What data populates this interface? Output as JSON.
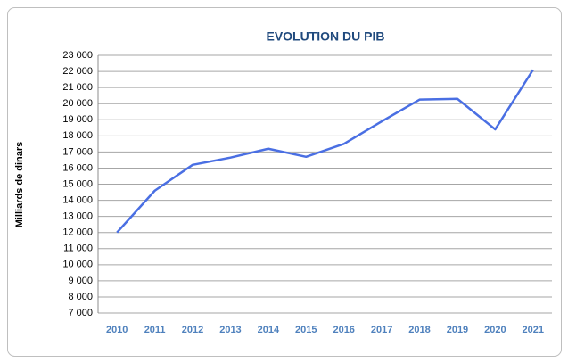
{
  "chart_data": {
    "type": "line",
    "title": "EVOLUTION DU PIB",
    "y_label": "Milliards de dinars",
    "categories": [
      "2010",
      "2011",
      "2012",
      "2013",
      "2014",
      "2015",
      "2016",
      "2017",
      "2018",
      "2019",
      "2020",
      "2021"
    ],
    "series": [
      {
        "name": "PIB",
        "color": "#4a6fe3",
        "values": [
          12000,
          14600,
          16200,
          16650,
          17200,
          16700,
          17500,
          18900,
          20250,
          20300,
          18400,
          22100
        ]
      }
    ],
    "ylim": [
      7000,
      23000
    ],
    "yticks": [
      {
        "value": 7000,
        "label": "7 000"
      },
      {
        "value": 8000,
        "label": "8 000"
      },
      {
        "value": 9000,
        "label": "9 000"
      },
      {
        "value": 10000,
        "label": "10 000"
      },
      {
        "value": 11000,
        "label": "11 000"
      },
      {
        "value": 12000,
        "label": "12 000"
      },
      {
        "value": 13000,
        "label": "13 000"
      },
      {
        "value": 14000,
        "label": "14 000"
      },
      {
        "value": 15000,
        "label": "15 000"
      },
      {
        "value": 16000,
        "label": "16 000"
      },
      {
        "value": 17000,
        "label": "17 000"
      },
      {
        "value": 18000,
        "label": "18 000"
      },
      {
        "value": 19000,
        "label": "19 000"
      },
      {
        "value": 20000,
        "label": "20 000"
      },
      {
        "value": 21000,
        "label": "21 000"
      },
      {
        "value": 22000,
        "label": "22 000"
      },
      {
        "value": 23000,
        "label": "23 000"
      }
    ],
    "grid": true
  }
}
